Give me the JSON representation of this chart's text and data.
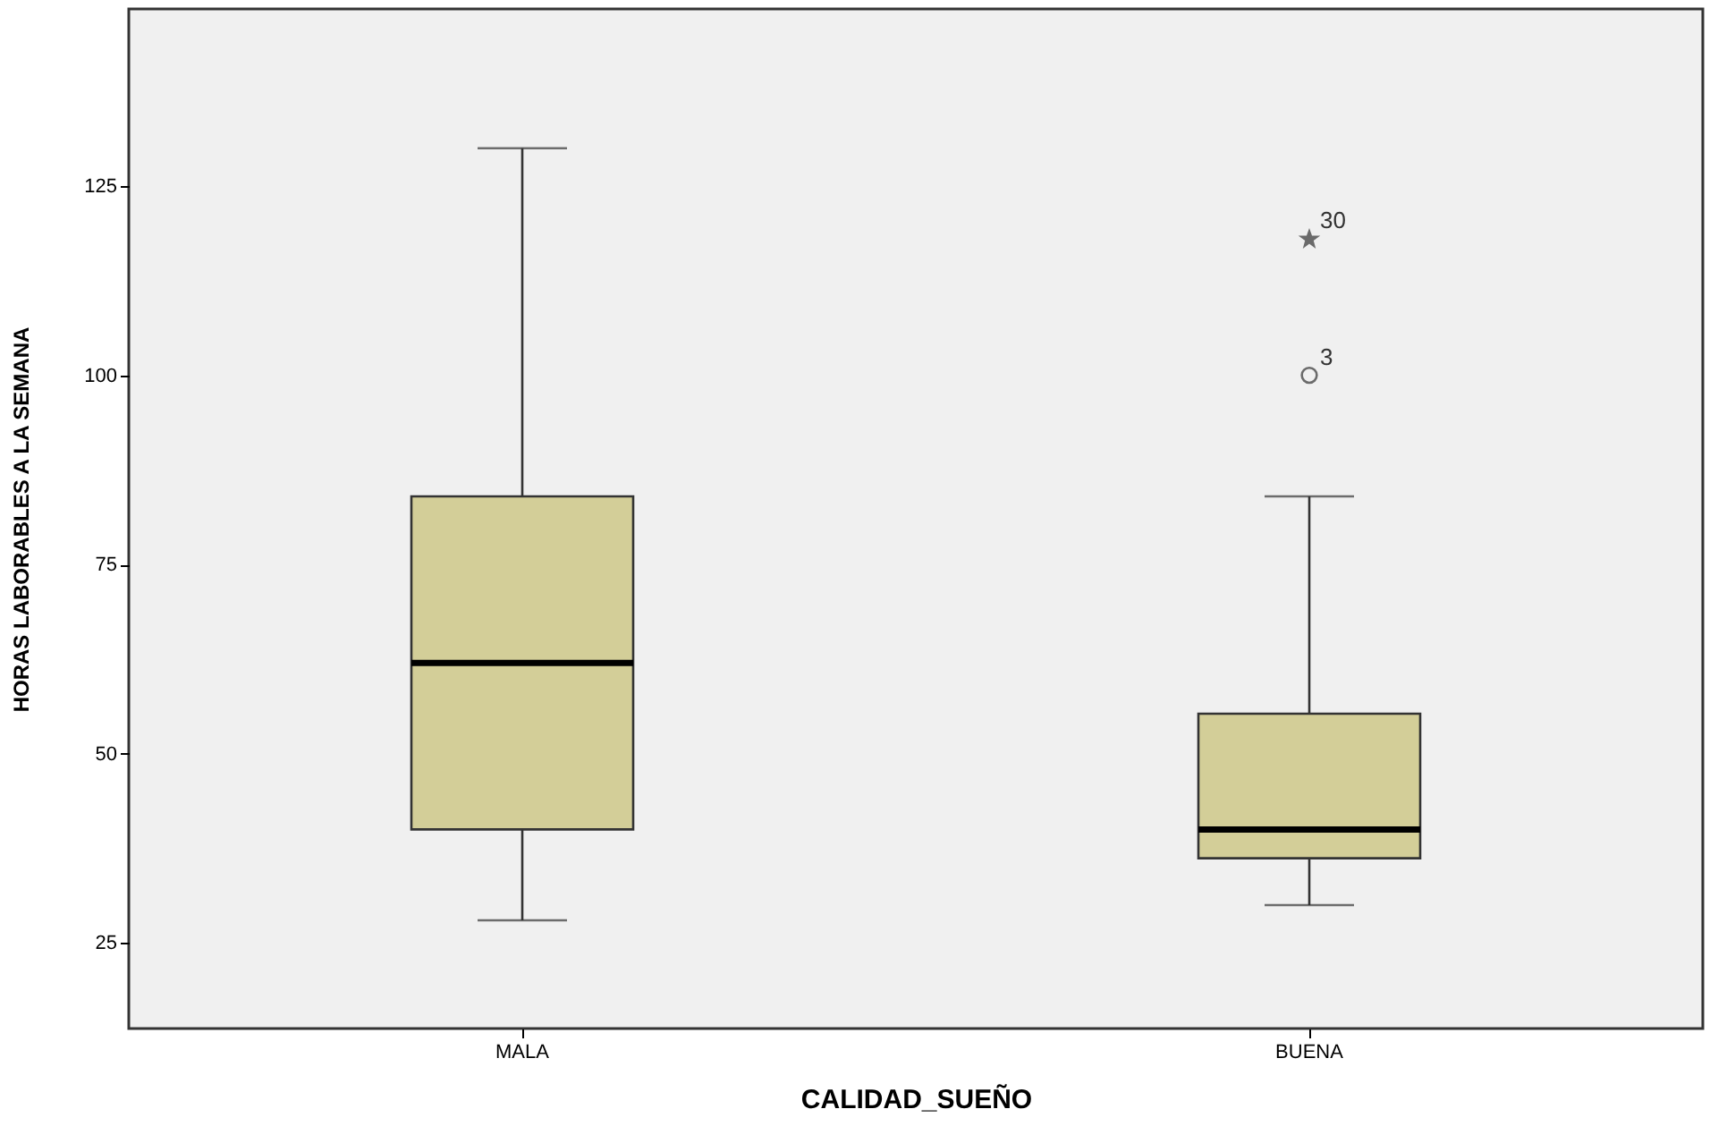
{
  "chart_data": {
    "type": "box",
    "xlabel": "CALIDAD_SUEÑO",
    "ylabel": "HORAS LABORABLES A LA SEMANA",
    "categories": [
      "MALA",
      "BUENA"
    ],
    "boxes": [
      {
        "low": 28,
        "q1": 40,
        "median": 62,
        "q3": 84,
        "high": 130
      },
      {
        "low": 30,
        "q1": 36.2,
        "median": 40,
        "q3": 55.3,
        "high": 84,
        "outliers": [
          100,
          118
        ]
      }
    ],
    "color": "#d3ce98",
    "ylim": [
      13.7,
      148.4
    ],
    "yticks": [
      25,
      50,
      75,
      100,
      125
    ],
    "grid": false,
    "annotations": [
      "3",
      "30"
    ]
  }
}
